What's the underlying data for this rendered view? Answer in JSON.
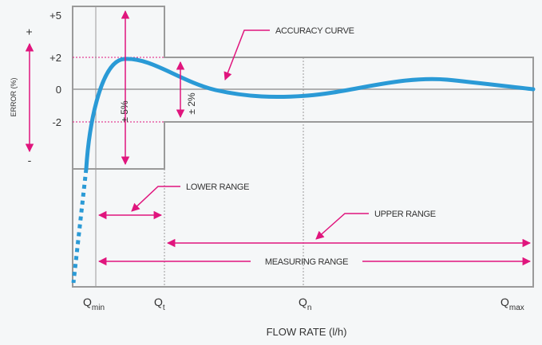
{
  "y_axis": {
    "title": "ERROR (%)",
    "plus_sign": "+",
    "minus_sign": "-",
    "ticks": [
      "+5",
      "+2",
      "0",
      "-2"
    ]
  },
  "x_axis": {
    "title": "FLOW RATE (l/h)",
    "ticks": [
      {
        "main": "Q",
        "sub": "min"
      },
      {
        "main": "Q",
        "sub": "t"
      },
      {
        "main": "Q",
        "sub": "n"
      },
      {
        "main": "Q",
        "sub": "max"
      }
    ]
  },
  "annotations": {
    "accuracy_curve": "ACCURACY CURVE",
    "lower_range": "LOWER RANGE",
    "upper_range": "UPPER RANGE",
    "measuring_range": "MEASURING RANGE",
    "tolerance_lower": "± 5%",
    "tolerance_upper": "± 2%"
  },
  "colors": {
    "curve": "#2a9ad6",
    "arrows": "#e0157d",
    "box": "#9a9a9a",
    "tolerance_lines": "#e0157d"
  }
}
